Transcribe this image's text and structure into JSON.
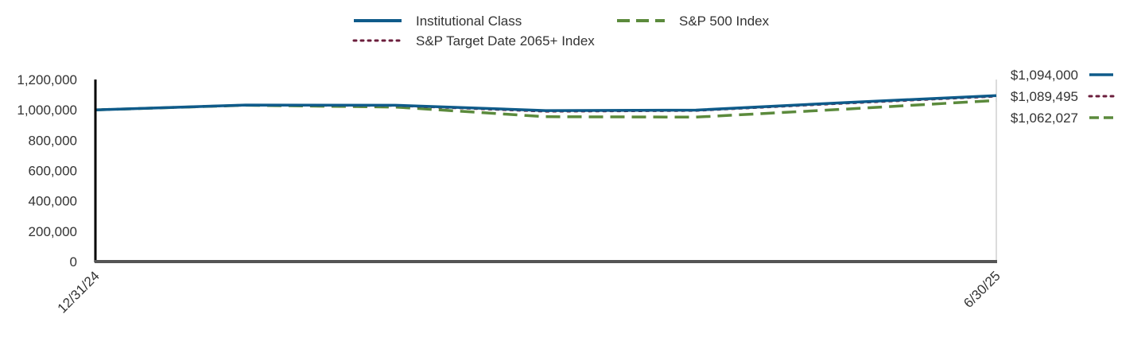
{
  "chart_data": {
    "type": "line",
    "title": "",
    "xlabel": "",
    "ylabel": "",
    "x": [
      "12/31/24",
      "1/31/25",
      "2/28/25",
      "3/31/25",
      "4/30/25",
      "5/31/25",
      "6/30/25"
    ],
    "x_tick_labels": [
      "12/31/24",
      "6/30/25"
    ],
    "ylim": [
      0,
      1200000
    ],
    "y_ticks": [
      0,
      200000,
      400000,
      600000,
      800000,
      1000000,
      1200000
    ],
    "y_tick_labels": [
      "0",
      "200,000",
      "400,000",
      "600,000",
      "800,000",
      "1,000,000",
      "1,200,000"
    ],
    "legend_position": "top-center",
    "series": [
      {
        "name": "Institutional Class",
        "values": [
          1000000,
          1032000,
          1030000,
          995000,
          998000,
          1048000,
          1094000
        ],
        "end_label": "$1,094,000",
        "color": "#0f5b8a",
        "style": "solid"
      },
      {
        "name": "S&P Target Date 2065+ Index",
        "values": [
          1000000,
          1030000,
          1028000,
          990000,
          995000,
          1044000,
          1089495
        ],
        "end_label": "$1,089,495",
        "color": "#6b1e3c",
        "style": "dotted"
      },
      {
        "name": "S&P 500 Index",
        "values": [
          1000000,
          1030000,
          1018000,
          955000,
          952000,
          1005000,
          1062027
        ],
        "end_label": "$1,062,027",
        "color": "#5b8a3c",
        "style": "dashed"
      }
    ]
  }
}
